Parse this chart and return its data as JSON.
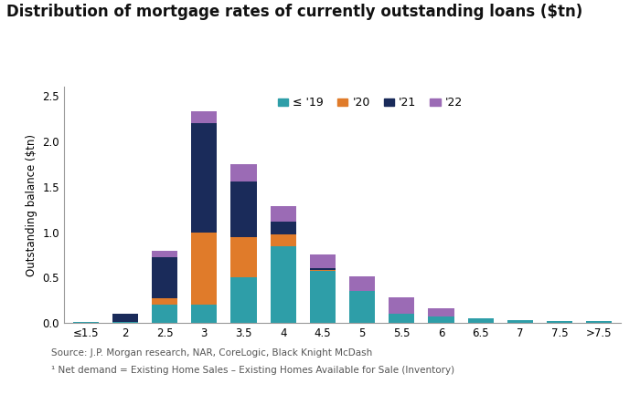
{
  "title": "Distribution of mortgage rates of currently outstanding loans ($tn)",
  "ylabel": "Outstanding balance ($tn)",
  "categories": [
    "≤1.5",
    "2",
    "2.5",
    "3",
    "3.5",
    "4",
    "4.5",
    "5",
    "5.5",
    "6",
    "6.5",
    "7",
    "7.5",
    ">7.5"
  ],
  "series": {
    "≤ '19": [
      0.01,
      0.01,
      0.2,
      0.2,
      0.5,
      0.85,
      0.57,
      0.35,
      0.1,
      0.07,
      0.05,
      0.03,
      0.02,
      0.02
    ],
    "'20": [
      0.0,
      0.0,
      0.07,
      0.8,
      0.45,
      0.13,
      0.01,
      0.0,
      0.0,
      0.0,
      0.0,
      0.0,
      0.0,
      0.0
    ],
    "'21": [
      0.0,
      0.09,
      0.45,
      1.2,
      0.61,
      0.14,
      0.02,
      0.0,
      0.0,
      0.0,
      0.0,
      0.0,
      0.0,
      0.0
    ],
    "'22": [
      0.0,
      0.0,
      0.07,
      0.13,
      0.19,
      0.17,
      0.15,
      0.16,
      0.18,
      0.09,
      0.0,
      0.0,
      0.0,
      0.0
    ]
  },
  "colors": {
    "≤ '19": "#2E9EA8",
    "'20": "#E07B2A",
    "'21": "#1A2B5A",
    "'22": "#9B6BB5"
  },
  "ylim": [
    0,
    2.6
  ],
  "yticks": [
    0.0,
    0.5,
    1.0,
    1.5,
    2.0,
    2.5
  ],
  "background_color": "#FFFFFF",
  "source_line1": "Source: J.P. Morgan research, NAR, CoreLogic, Black Knight McDash",
  "source_line2": "¹ Net demand = Existing Home Sales – Existing Homes Available for Sale (Inventory)",
  "title_fontsize": 12,
  "legend_fontsize": 9,
  "axis_fontsize": 8.5,
  "source_fontsize": 7.5
}
